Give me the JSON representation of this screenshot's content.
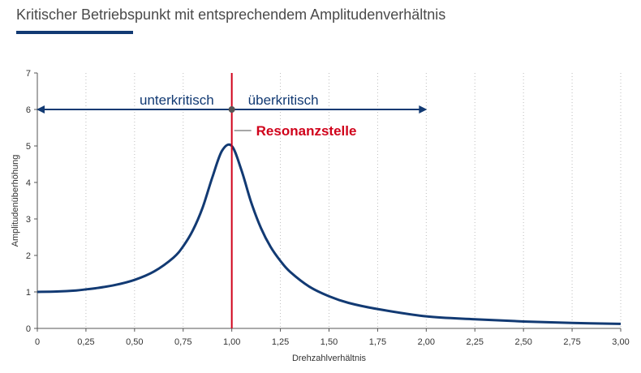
{
  "chart_data": {
    "type": "line",
    "title": "Kritischer Betriebspunkt mit entsprechendem Amplitudenverhältnis",
    "xlabel": "Drehzahlverhältnis",
    "ylabel": "Amplitudenüberhöhung",
    "xlim": [
      0,
      3
    ],
    "ylim": [
      0,
      7
    ],
    "x_ticks": [
      "0",
      "0,25",
      "0,50",
      "0,75",
      "1,00",
      "1,25",
      "1,50",
      "1,75",
      "2,00",
      "2,25",
      "2,50",
      "2,75",
      "3,00"
    ],
    "y_ticks": [
      "0",
      "1",
      "2",
      "3",
      "4",
      "5",
      "6",
      "7"
    ],
    "grid": "vertical dotted",
    "series": [
      {
        "color": "#123a73",
        "x": [
          0,
          0.1,
          0.2,
          0.25,
          0.3,
          0.4,
          0.5,
          0.6,
          0.7,
          0.75,
          0.8,
          0.85,
          0.9,
          0.95,
          1.0,
          1.05,
          1.1,
          1.15,
          1.2,
          1.25,
          1.3,
          1.4,
          1.5,
          1.6,
          1.75,
          2.0,
          2.25,
          2.5,
          2.75,
          3.0
        ],
        "y": [
          1.0,
          1.01,
          1.04,
          1.07,
          1.1,
          1.19,
          1.33,
          1.56,
          1.94,
          2.25,
          2.69,
          3.31,
          4.14,
          4.87,
          5.0,
          4.33,
          3.45,
          2.75,
          2.23,
          1.85,
          1.55,
          1.14,
          0.88,
          0.7,
          0.53,
          0.33,
          0.25,
          0.19,
          0.15,
          0.125
        ]
      }
    ],
    "annotations": {
      "resonance_x": 1.0,
      "resonance_label": "Resonanzstelle",
      "resonance_color": "#d0021b",
      "arrow_y": 6,
      "arrow_x_range": [
        0,
        2.0
      ],
      "left_region_label": "unterkritisch",
      "right_region_label": "überkritisch"
    }
  }
}
